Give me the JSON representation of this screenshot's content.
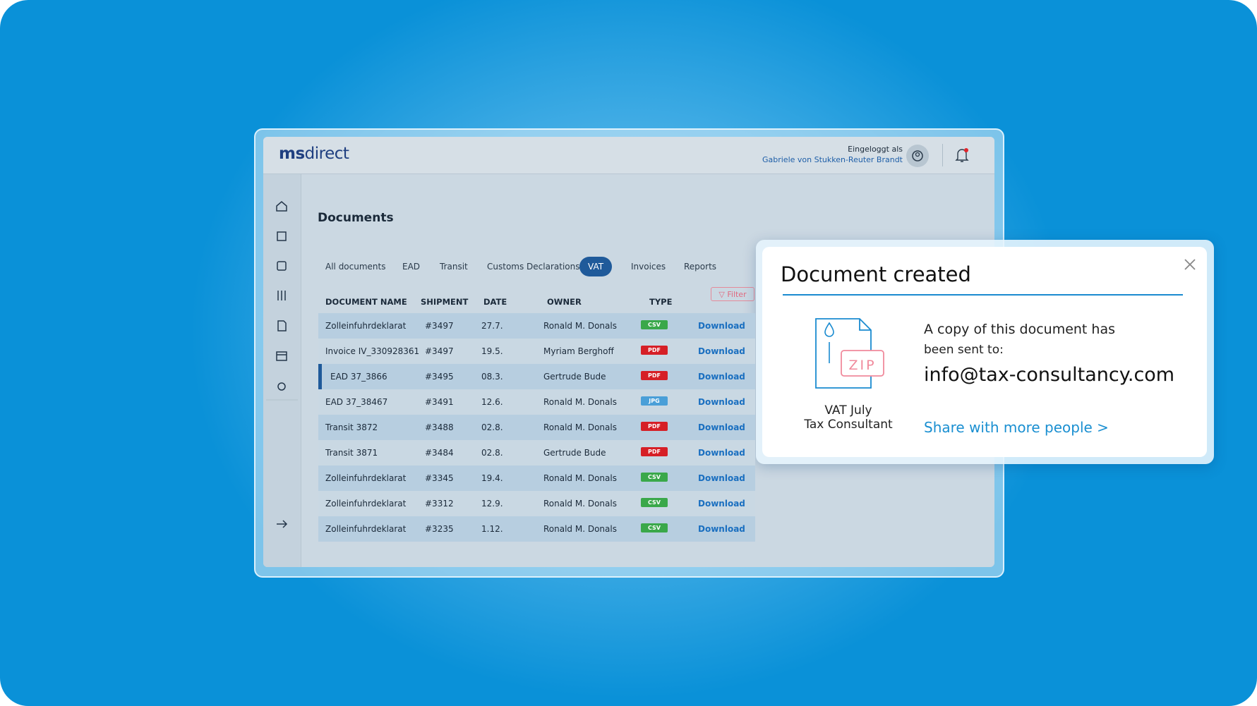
{
  "header": {
    "logo_bold": "ms",
    "logo_rest": "direct",
    "login_label": "Eingeloggt als",
    "user": "Gabriele von Stukken-Reuter Brandt"
  },
  "page": {
    "title": "Documents",
    "tabs": [
      {
        "label": "All documents"
      },
      {
        "label": "EAD"
      },
      {
        "label": "Transit"
      },
      {
        "label": "Customs Declarations"
      },
      {
        "label": "VAT",
        "active": true
      },
      {
        "label": "Invoices"
      },
      {
        "label": "Reports"
      }
    ],
    "filter": "Filter"
  },
  "table": {
    "columns": [
      "DOCUMENT NAME",
      "SHIPMENT",
      "DATE",
      "OWNER",
      "TYPE"
    ],
    "rows": [
      {
        "name": "Zolleinfuhrdeklarat",
        "shipment": "#3497",
        "date": "27.7.",
        "owner": "Ronald M. Donals",
        "type": "CSV",
        "type_color": "#3aa84a",
        "action": "Download"
      },
      {
        "name": "Invoice IV_330928361",
        "shipment": "#3497",
        "date": "19.5.",
        "owner": "Myriam Berghoff",
        "type": "PDF",
        "type_color": "#d61f26",
        "action": "Download"
      },
      {
        "name": "EAD 37_3866",
        "shipment": "#3495",
        "date": "08.3.",
        "owner": "Gertrude Bude",
        "type": "PDF",
        "type_color": "#d61f26",
        "action": "Download",
        "selected": true
      },
      {
        "name": "EAD 37_38467",
        "shipment": "#3491",
        "date": "12.6.",
        "owner": "Ronald M. Donals",
        "type": "JPG",
        "type_color": "#4a9fd8",
        "action": "Download"
      },
      {
        "name": "Transit 3872",
        "shipment": "#3488",
        "date": "02.8.",
        "owner": "Ronald M. Donals",
        "type": "PDF",
        "type_color": "#d61f26",
        "action": "Download"
      },
      {
        "name": "Transit 3871",
        "shipment": "#3484",
        "date": "02.8.",
        "owner": "Gertrude Bude",
        "type": "PDF",
        "type_color": "#d61f26",
        "action": "Download"
      },
      {
        "name": "Zolleinfuhrdeklarat",
        "shipment": "#3345",
        "date": "19.4.",
        "owner": "Ronald M. Donals",
        "type": "CSV",
        "type_color": "#3aa84a",
        "action": "Download"
      },
      {
        "name": "Zolleinfuhrdeklarat",
        "shipment": "#3312",
        "date": "12.9.",
        "owner": "Ronald M. Donals",
        "type": "CSV",
        "type_color": "#3aa84a",
        "action": "Download"
      },
      {
        "name": "Zolleinfuhrdeklarat",
        "shipment": "#3235",
        "date": "1.12.",
        "owner": "Ronald M. Donals",
        "type": "CSV",
        "type_color": "#3aa84a",
        "action": "Download"
      }
    ]
  },
  "popup": {
    "title": "Document created",
    "file_type": "ZIP",
    "file_name": "VAT July",
    "file_subtitle": "Tax Consultant",
    "message_lines": [
      "A copy of this document has",
      "been sent to:"
    ],
    "email": "info@tax-consultancy.com",
    "link": "Share with more people >"
  }
}
